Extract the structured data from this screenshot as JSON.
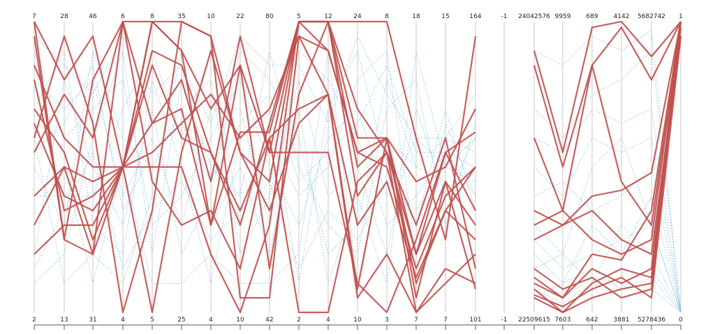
{
  "chart_data": {
    "type": "parallel_coordinates",
    "title": "",
    "axes": [
      {
        "top": "7",
        "bottom": "2"
      },
      {
        "top": "28",
        "bottom": "13"
      },
      {
        "top": "46",
        "bottom": "31"
      },
      {
        "top": "6",
        "bottom": "4"
      },
      {
        "top": "8",
        "bottom": "5"
      },
      {
        "top": "35",
        "bottom": "25"
      },
      {
        "top": "10",
        "bottom": "4"
      },
      {
        "top": "22",
        "bottom": "10"
      },
      {
        "top": "80",
        "bottom": "42"
      },
      {
        "top": "5",
        "bottom": "2"
      },
      {
        "top": "12",
        "bottom": "4"
      },
      {
        "top": "24",
        "bottom": "10"
      },
      {
        "top": "8",
        "bottom": "3"
      },
      {
        "top": "18",
        "bottom": "7"
      },
      {
        "top": "15",
        "bottom": "7"
      },
      {
        "top": "164",
        "bottom": "101"
      },
      {
        "top": "-1",
        "bottom": "-1"
      },
      {
        "top": "24042576",
        "bottom": "22509615"
      },
      {
        "top": "9959",
        "bottom": "7603"
      },
      {
        "top": "689",
        "bottom": "642"
      },
      {
        "top": "4142",
        "bottom": "3881"
      },
      {
        "top": "5682742",
        "bottom": "5278436"
      },
      {
        "top": "1",
        "bottom": "0"
      }
    ],
    "highlighted_series": [
      [
        1.0,
        0.8,
        0.95,
        0.5,
        1.0,
        1.0,
        0.95,
        0.55,
        0.45,
        1.0,
        1.0,
        1.0,
        1.0,
        0.6,
        0.25,
        0.95,
        null,
        0.9,
        0.55,
        0.98,
        1.0,
        0.88,
        1.0
      ],
      [
        0.8,
        0.35,
        0.4,
        0.5,
        1.0,
        0.9,
        0.3,
        0.62,
        0.62,
        1.0,
        1.0,
        0.6,
        0.6,
        0.1,
        0.35,
        0.5,
        null,
        0.85,
        0.5,
        0.85,
        0.98,
        0.8,
        1.0
      ],
      [
        0.6,
        0.95,
        0.65,
        0.0,
        0.35,
        1.0,
        0.95,
        0.05,
        0.05,
        0.95,
        0.75,
        0.08,
        0.6,
        0.45,
        0.5,
        0.7,
        null,
        0.6,
        0.35,
        0.85,
        0.45,
        0.3,
        1.0
      ],
      [
        0.4,
        0.5,
        0.2,
        0.5,
        0.5,
        0.5,
        0.2,
        0.0,
        0.3,
        1.0,
        1.0,
        0.5,
        0.6,
        0.2,
        0.55,
        0.35,
        null,
        0.35,
        0.3,
        0.4,
        0.42,
        0.48,
        1.0
      ],
      [
        1.0,
        0.25,
        0.8,
        1.0,
        0.65,
        0.8,
        0.45,
        0.95,
        0.55,
        0.55,
        0.55,
        0.1,
        0.0,
        0.25,
        0.55,
        0.62,
        null,
        0.1,
        0.05,
        0.15,
        0.1,
        0.15,
        1.0
      ],
      [
        0.2,
        0.3,
        0.3,
        0.5,
        0.0,
        0.55,
        0.9,
        0.55,
        0.35,
        0.65,
        0.75,
        0.05,
        0.2,
        0.0,
        0.15,
        0.1,
        null,
        0.08,
        0.0,
        0.05,
        0.08,
        0.1,
        0.98
      ],
      [
        0.95,
        0.25,
        0.2,
        1.0,
        0.45,
        0.3,
        0.35,
        0.15,
        0.6,
        0.0,
        0.0,
        0.45,
        0.55,
        0.0,
        0.1,
        0.2,
        null,
        0.06,
        0.02,
        0.08,
        0.12,
        0.05,
        0.95
      ],
      [
        0.7,
        0.55,
        0.25,
        0.5,
        0.85,
        0.6,
        0.55,
        0.3,
        0.65,
        1.0,
        0.9,
        0.55,
        0.6,
        0.05,
        0.45,
        0.08,
        null,
        0.25,
        0.3,
        0.35,
        0.25,
        0.2,
        0.95
      ],
      [
        0.55,
        0.75,
        0.6,
        1.0,
        1.0,
        0.9,
        0.7,
        0.85,
        0.55,
        1.0,
        1.0,
        0.7,
        0.55,
        0.3,
        0.6,
        0.15,
        null,
        0.05,
        0.0,
        0.1,
        0.15,
        0.12,
        1.0
      ],
      [
        0.3,
        0.5,
        0.45,
        0.5,
        0.65,
        0.7,
        0.3,
        0.85,
        0.15,
        0.75,
        1.0,
        0.4,
        0.55,
        0.2,
        0.45,
        0.3,
        null,
        0.3,
        0.35,
        0.25,
        0.2,
        0.25,
        1.0
      ],
      [
        0.85,
        0.6,
        0.5,
        0.5,
        0.55,
        0.65,
        0.75,
        0.6,
        0.7,
        0.95,
        0.9,
        0.55,
        0.5,
        0.15,
        0.4,
        0.5,
        null,
        0.12,
        0.05,
        0.2,
        0.18,
        0.35,
        1.0
      ],
      [
        0.65,
        0.4,
        0.35,
        0.5,
        0.9,
        0.85,
        0.55,
        0.35,
        0.6,
        0.7,
        0.75,
        0.3,
        0.45,
        0.12,
        0.35,
        0.25,
        null,
        0.15,
        0.08,
        0.12,
        0.05,
        0.08,
        1.0
      ]
    ],
    "background_series": [
      [
        0.9,
        0.6,
        0.7,
        0.8,
        0.3,
        0.4,
        0.6,
        0.8,
        0.5,
        0.3,
        0.6,
        0.7,
        0.4,
        0.6,
        0.5,
        0.45,
        null,
        0.2,
        0.1,
        0.3,
        0.2,
        0.4,
        0.0
      ],
      [
        0.2,
        0.8,
        0.5,
        0.3,
        0.7,
        0.2,
        0.4,
        0.9,
        0.8,
        0.6,
        0.2,
        0.3,
        0.8,
        0.5,
        0.6,
        0.55,
        null,
        0.3,
        0.2,
        0.5,
        0.6,
        0.3,
        0.0
      ],
      [
        0.5,
        0.3,
        0.9,
        0.6,
        0.5,
        0.7,
        0.8,
        0.2,
        0.4,
        0.8,
        0.4,
        0.5,
        0.2,
        0.7,
        0.4,
        0.6,
        null,
        0.9,
        0.85,
        0.95,
        0.9,
        0.97,
        0.0
      ],
      [
        0.7,
        0.9,
        0.3,
        0.2,
        0.8,
        0.5,
        0.1,
        0.6,
        0.7,
        0.1,
        0.7,
        0.9,
        0.5,
        0.3,
        0.7,
        0.35,
        null,
        0.15,
        0.2,
        0.1,
        0.3,
        0.2,
        0.0
      ],
      [
        0.1,
        0.2,
        0.6,
        0.9,
        0.2,
        0.8,
        0.5,
        0.4,
        0.9,
        0.5,
        0.3,
        0.2,
        0.7,
        0.8,
        0.3,
        0.65,
        null,
        0.4,
        0.45,
        0.35,
        0.4,
        0.5,
        0.0
      ],
      [
        0.8,
        0.7,
        0.8,
        0.4,
        0.6,
        0.3,
        0.7,
        0.7,
        0.3,
        0.9,
        0.8,
        0.6,
        0.3,
        0.4,
        0.55,
        0.5,
        null,
        0.05,
        0.1,
        0.15,
        0.08,
        0.12,
        0.0
      ],
      [
        0.4,
        0.4,
        0.4,
        0.7,
        0.9,
        0.6,
        0.9,
        0.3,
        0.6,
        0.4,
        0.5,
        0.8,
        0.9,
        0.2,
        0.65,
        0.4,
        null,
        0.7,
        0.6,
        0.75,
        0.8,
        0.9,
        0.0
      ],
      [
        0.6,
        0.1,
        0.2,
        0.1,
        0.4,
        0.9,
        0.3,
        0.5,
        0.2,
        0.7,
        0.1,
        0.4,
        0.1,
        0.9,
        0.5,
        0.7,
        null,
        0.25,
        0.15,
        0.2,
        0.25,
        0.3,
        0.0
      ],
      [
        0.3,
        0.5,
        0.1,
        0.5,
        0.1,
        0.1,
        0.2,
        0.1,
        0.1,
        0.2,
        0.9,
        0.1,
        0.6,
        0.5,
        0.45,
        0.3,
        null,
        0.1,
        0.05,
        0.12,
        0.1,
        0.15,
        0.0
      ],
      [
        0.95,
        0.85,
        0.75,
        0.95,
        0.75,
        0.85,
        0.65,
        0.95,
        0.85,
        0.85,
        0.65,
        0.95,
        0.75,
        0.6,
        0.6,
        0.75,
        null,
        0.5,
        0.4,
        0.6,
        0.55,
        0.6,
        0.0
      ],
      [
        0.15,
        0.35,
        0.55,
        0.15,
        0.35,
        0.45,
        0.25,
        0.35,
        0.45,
        0.15,
        0.35,
        0.25,
        0.45,
        0.35,
        0.5,
        0.6,
        null,
        0.08,
        0.03,
        0.1,
        0.05,
        0.08,
        0.0
      ],
      [
        0.55,
        0.65,
        0.85,
        0.35,
        0.55,
        0.65,
        0.45,
        0.65,
        0.75,
        0.45,
        0.55,
        0.65,
        0.85,
        0.55,
        0.55,
        0.4,
        null,
        0.6,
        0.55,
        0.7,
        0.65,
        0.7,
        0.0
      ]
    ]
  }
}
